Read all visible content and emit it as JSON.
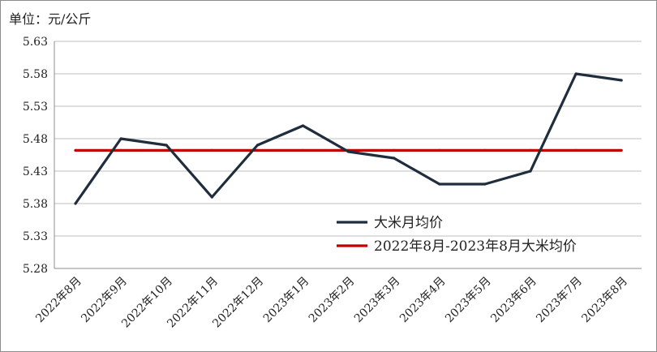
{
  "unit_label": "单位：元/公斤",
  "chart_data": {
    "type": "line",
    "categories": [
      "2022年8月",
      "2022年9月",
      "2022年10月",
      "2022年11月",
      "2022年12月",
      "2023年1月",
      "2023年2月",
      "2023年3月",
      "2023年4月",
      "2023年5月",
      "2023年6月",
      "2023年7月",
      "2023年8月"
    ],
    "series": [
      {
        "name": "大米月均价",
        "color": "#1f2d3d",
        "values": [
          5.38,
          5.48,
          5.47,
          5.39,
          5.47,
          5.5,
          5.46,
          5.45,
          5.41,
          5.41,
          5.43,
          5.58,
          5.57
        ]
      },
      {
        "name": "2022年8月-2023年8月大米均价",
        "color": "#c00000",
        "values": [
          5.462,
          5.462,
          5.462,
          5.462,
          5.462,
          5.462,
          5.462,
          5.462,
          5.462,
          5.462,
          5.462,
          5.462,
          5.462
        ]
      }
    ],
    "ylim": [
      5.28,
      5.63
    ],
    "yticks": [
      "5.28",
      "5.33",
      "5.38",
      "5.43",
      "5.48",
      "5.53",
      "5.58",
      "5.63"
    ],
    "ylabel": "单位：元/公斤",
    "xlabel": "",
    "grid": true,
    "legend_position": "lower-right"
  }
}
